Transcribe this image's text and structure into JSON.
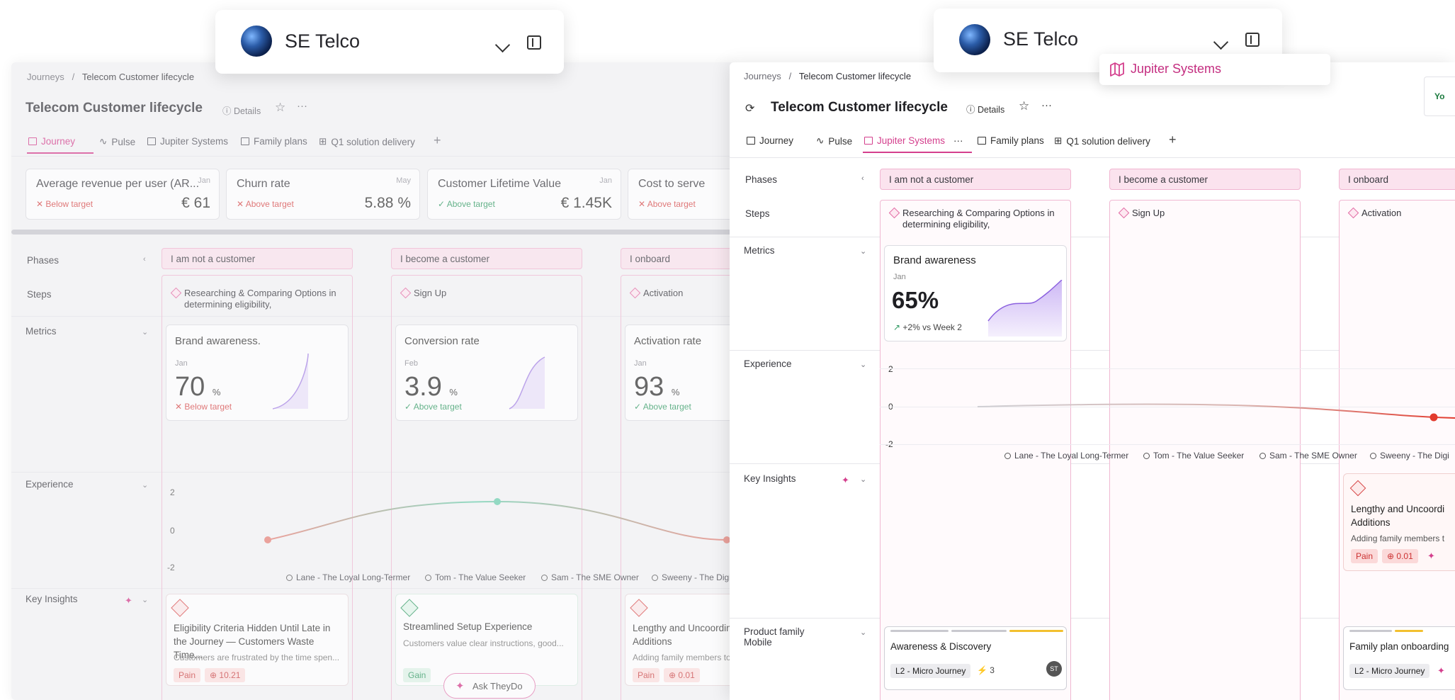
{
  "workspace_left": {
    "name": "SE Telco"
  },
  "workspace_right": {
    "name": "SE Telco",
    "dropdown_item": "Jupiter Systems"
  },
  "partial_right_label": "Yo",
  "breadcrumb": {
    "root": "Journeys",
    "sep": "/",
    "current": "Telecom Customer lifecycle"
  },
  "page": {
    "title": "Telecom Customer lifecycle",
    "details_label": "Details"
  },
  "tabs": [
    {
      "label": "Journey"
    },
    {
      "label": "Pulse"
    },
    {
      "label": "Jupiter Systems"
    },
    {
      "label": "Family plans"
    },
    {
      "label": "Q1 solution delivery"
    }
  ],
  "kpis": [
    {
      "name": "Average revenue per user (AR...",
      "month": "Jan",
      "status": "Below target",
      "value": "€ 61"
    },
    {
      "name": "Churn rate",
      "month": "May",
      "status": "Above target",
      "value": "5.88 %"
    },
    {
      "name": "Customer Lifetime Value",
      "month": "Jan",
      "status": "Above target",
      "value": "€ 1.45K"
    },
    {
      "name": "Cost to serve",
      "month": "",
      "status": "Above target",
      "value": ""
    }
  ],
  "rows": {
    "phases": "Phases",
    "steps": "Steps",
    "metrics": "Metrics",
    "experience": "Experience",
    "insights": "Key Insights",
    "product_family": "Product family Mobile"
  },
  "phases": [
    "I am not a customer",
    "I become a customer",
    "I onboard"
  ],
  "steps": [
    "Researching & Comparing Options in determining eligibility,",
    "Sign Up",
    "Activation"
  ],
  "bg_metrics": [
    {
      "title": "Brand awareness.",
      "month": "Jan",
      "value": "70",
      "unit": "%",
      "status": "Below target"
    },
    {
      "title": "Conversion rate",
      "month": "Feb",
      "value": "3.9",
      "unit": "%",
      "status": "Above target"
    },
    {
      "title": "Activation rate",
      "month": "Jan",
      "value": "93",
      "unit": "%",
      "status": "Above target"
    }
  ],
  "fg_metric": {
    "title": "Brand awareness",
    "month": "Jan",
    "value": "65%",
    "delta": "+2% vs Week 2"
  },
  "experience_axis": {
    "ticks": [
      "2",
      "0",
      "-2"
    ]
  },
  "personas": [
    "Lane - The Loyal Long-Termer",
    "Tom - The Value Seeker",
    "Sam - The SME Owner",
    "Sweeny - The Digi"
  ],
  "bg_insights": [
    {
      "title": "Eligibility Criteria Hidden Until Late in the Journey — Customers Waste Time...",
      "desc": "Customers are frustrated by the time spen...",
      "tag": "Pain",
      "score": "10.21"
    },
    {
      "title": "Streamlined Setup Experience",
      "desc": "Customers value clear instructions, good...",
      "tag": "Gain",
      "score": ""
    },
    {
      "title": "Lengthy and Uncoordin Additions",
      "desc": "Adding family members to",
      "tag": "Pain",
      "score": "0.01"
    }
  ],
  "fg_insight": {
    "title": "Lengthy and Uncoordi Additions",
    "desc": "Adding family members t",
    "tag": "Pain",
    "score": "0.01"
  },
  "ask_button": "Ask TheyDo",
  "product_cards": [
    {
      "title": "Awareness & Discovery",
      "badge": "L2 - Micro Journey",
      "count": "3",
      "avatar": "ST"
    },
    {
      "title": "Family plan onboarding",
      "badge": "L2 - Micro Journey"
    }
  ],
  "colors": {
    "accent": "#d43f8d",
    "pain": "#d84a4a",
    "gain": "#2f9a62",
    "phase_bg": "#fbe3ee"
  }
}
